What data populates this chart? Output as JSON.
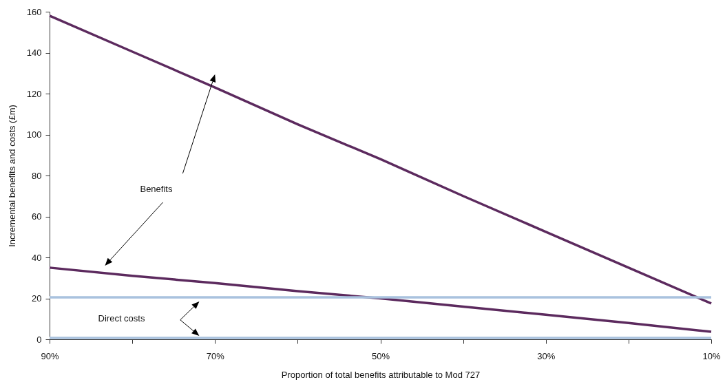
{
  "chart_data": {
    "type": "line",
    "xlabel": "Proportion of total benefits attributable to Mod 727",
    "ylabel": "Incremental benefits and costs (£m)",
    "xlim": [
      90,
      10
    ],
    "xticks": [
      {
        "value": 90,
        "label": "90%"
      },
      {
        "value": 80,
        "label": null
      },
      {
        "value": 70,
        "label": "70%"
      },
      {
        "value": 60,
        "label": null
      },
      {
        "value": 50,
        "label": "50%"
      },
      {
        "value": 40,
        "label": null
      },
      {
        "value": 30,
        "label": "30%"
      },
      {
        "value": 20,
        "label": null
      },
      {
        "value": 10,
        "label": "10%"
      }
    ],
    "ylim": [
      0,
      160
    ],
    "yticks": [
      0,
      20,
      40,
      60,
      80,
      100,
      120,
      140,
      160
    ],
    "grid": false,
    "marker": "none",
    "line_style": "solid",
    "series": [
      {
        "color": "#5c2a5e",
        "x": [
          90,
          80,
          70,
          60,
          50,
          40,
          30,
          20,
          10
        ],
        "values": [
          158,
          140.5,
          123,
          105,
          88,
          70,
          52.5,
          35,
          17.5
        ]
      },
      {
        "color": "#5c2a5e",
        "x": [
          90,
          80,
          70,
          60,
          50,
          40,
          30,
          20,
          10
        ],
        "values": [
          35,
          31,
          27.5,
          23.5,
          20,
          16,
          12,
          8,
          3.7
        ]
      },
      {
        "color": "#a9c2de",
        "x": [
          90,
          10
        ],
        "values": [
          20.5,
          20.5
        ]
      },
      {
        "color": "#a9c2de",
        "x": [
          90,
          10
        ],
        "values": [
          0.7,
          0.7
        ]
      }
    ],
    "annotations": [
      "Benefits",
      "Direct costs"
    ]
  }
}
